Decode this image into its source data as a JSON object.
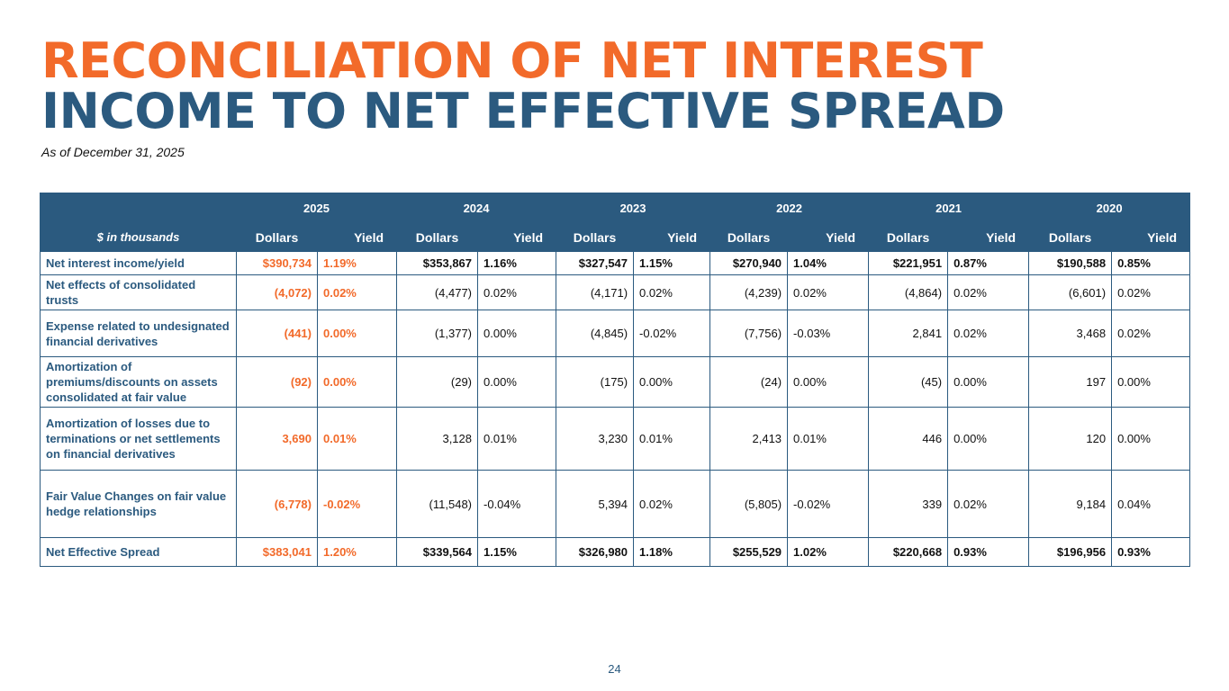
{
  "title": {
    "line1": "RECONCILIATION OF NET INTEREST",
    "line2": "INCOME TO NET EFFECTIVE SPREAD"
  },
  "subtitle": "As of December 31, 2025",
  "table": {
    "years": [
      "2025",
      "2024",
      "2023",
      "2022",
      "2021",
      "2020"
    ],
    "units_label": "$ in thousands",
    "dollars_label": "Dollars",
    "yield_label": "Yield",
    "rows": [
      {
        "label": "Net interest income/yield",
        "bold": true,
        "values": [
          "$390,734",
          "1.19%",
          "$353,867",
          "1.16%",
          "$327,547",
          "1.15%",
          "$270,940",
          "1.04%",
          "$221,951",
          "0.87%",
          "$190,588",
          "0.85%"
        ]
      },
      {
        "label": "Net effects of consolidated trusts",
        "bold": false,
        "values": [
          "(4,072)",
          "0.02%",
          "(4,477)",
          "0.02%",
          "(4,171)",
          "0.02%",
          "(4,239)",
          "0.02%",
          "(4,864)",
          "0.02%",
          "(6,601)",
          "0.02%"
        ]
      },
      {
        "label": "Expense related to undesignated financial derivatives",
        "bold": false,
        "values": [
          "(441)",
          "0.00%",
          "(1,377)",
          "0.00%",
          "(4,845)",
          "-0.02%",
          "(7,756)",
          "-0.03%",
          "2,841",
          "0.02%",
          "3,468",
          "0.02%"
        ]
      },
      {
        "label": "Amortization of premiums/discounts on assets consolidated at fair value",
        "bold": false,
        "values": [
          "(92)",
          "0.00%",
          "(29)",
          "0.00%",
          "(175)",
          "0.00%",
          "(24)",
          "0.00%",
          "(45)",
          "0.00%",
          "197",
          "0.00%"
        ]
      },
      {
        "label": "Amortization of losses due to terminations or net settlements on financial derivatives",
        "bold": false,
        "values": [
          "3,690",
          "0.01%",
          "3,128",
          "0.01%",
          "3,230",
          "0.01%",
          "2,413",
          "0.01%",
          "446",
          "0.00%",
          "120",
          "0.00%"
        ]
      },
      {
        "label": "Fair Value Changes on fair value hedge relationships",
        "bold": false,
        "values": [
          "(6,778)",
          "-0.02%",
          "(11,548)",
          "-0.04%",
          "5,394",
          "0.02%",
          "(5,805)",
          "-0.02%",
          "339",
          "0.02%",
          "9,184",
          "0.04%"
        ]
      },
      {
        "label": "Net Effective Spread",
        "bold": true,
        "values": [
          "$383,041",
          "1.20%",
          "$339,564",
          "1.15%",
          "$326,980",
          "1.18%",
          "$255,529",
          "1.02%",
          "$220,668",
          "0.93%",
          "$196,956",
          "0.93%"
        ]
      }
    ]
  },
  "page_number": "24",
  "colors": {
    "accent": "#f26a2a",
    "brand": "#2b5a7f"
  }
}
